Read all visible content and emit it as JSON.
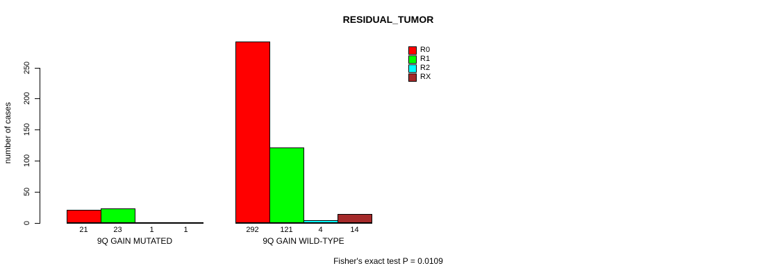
{
  "chart_data": {
    "type": "bar",
    "title": "RESIDUAL_TUMOR",
    "xlabel": "",
    "ylabel": "number of cases",
    "categories": [
      "9Q GAIN MUTATED",
      "9Q GAIN WILD-TYPE"
    ],
    "series": [
      {
        "name": "R0",
        "color": "#FF0000",
        "values": [
          21,
          292
        ]
      },
      {
        "name": "R1",
        "color": "#00FF00",
        "values": [
          23,
          121
        ]
      },
      {
        "name": "R2",
        "color": "#00FFFF",
        "values": [
          1,
          4
        ]
      },
      {
        "name": "RX",
        "color": "#A52A2A",
        "values": [
          1,
          14
        ]
      }
    ],
    "ylim": [
      0,
      292
    ],
    "yticks": [
      0,
      50,
      100,
      150,
      200,
      250
    ],
    "grid": false,
    "legend_position": "top-right",
    "bar_value_labels_shown": true,
    "annotations": [
      "Fisher's exact test P = 0.0109"
    ]
  }
}
